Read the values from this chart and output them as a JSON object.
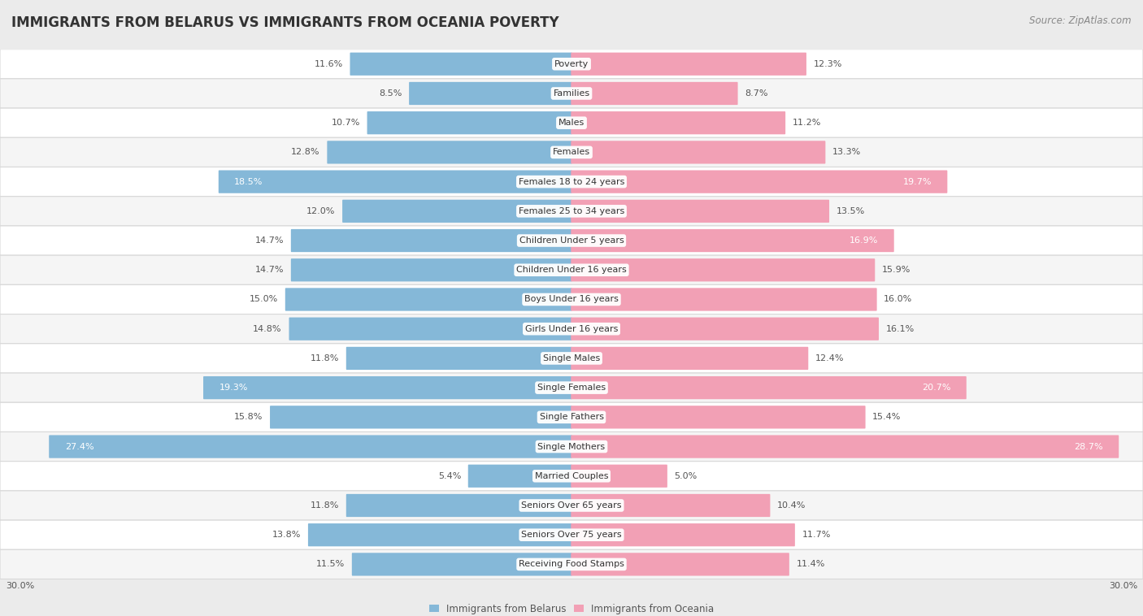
{
  "title": "IMMIGRANTS FROM BELARUS VS IMMIGRANTS FROM OCEANIA POVERTY",
  "source": "Source: ZipAtlas.com",
  "categories": [
    "Poverty",
    "Families",
    "Males",
    "Females",
    "Females 18 to 24 years",
    "Females 25 to 34 years",
    "Children Under 5 years",
    "Children Under 16 years",
    "Boys Under 16 years",
    "Girls Under 16 years",
    "Single Males",
    "Single Females",
    "Single Fathers",
    "Single Mothers",
    "Married Couples",
    "Seniors Over 65 years",
    "Seniors Over 75 years",
    "Receiving Food Stamps"
  ],
  "belarus_values": [
    11.6,
    8.5,
    10.7,
    12.8,
    18.5,
    12.0,
    14.7,
    14.7,
    15.0,
    14.8,
    11.8,
    19.3,
    15.8,
    27.4,
    5.4,
    11.8,
    13.8,
    11.5
  ],
  "oceania_values": [
    12.3,
    8.7,
    11.2,
    13.3,
    19.7,
    13.5,
    16.9,
    15.9,
    16.0,
    16.1,
    12.4,
    20.7,
    15.4,
    28.7,
    5.0,
    10.4,
    11.7,
    11.4
  ],
  "belarus_color": "#85B8D8",
  "oceania_color": "#F2A0B5",
  "bar_height": 0.72,
  "max_val": 30.0,
  "bg_color": "#ebebeb",
  "row_bg_even": "#f5f5f5",
  "row_bg_odd": "#ffffff",
  "label_color_default": "#555555",
  "label_color_highlight": "#ffffff",
  "highlight_threshold": 16.5,
  "title_fontsize": 12,
  "source_fontsize": 8.5,
  "label_fontsize": 8,
  "cat_fontsize": 8,
  "axis_label_fontsize": 8,
  "legend_fontsize": 8.5
}
